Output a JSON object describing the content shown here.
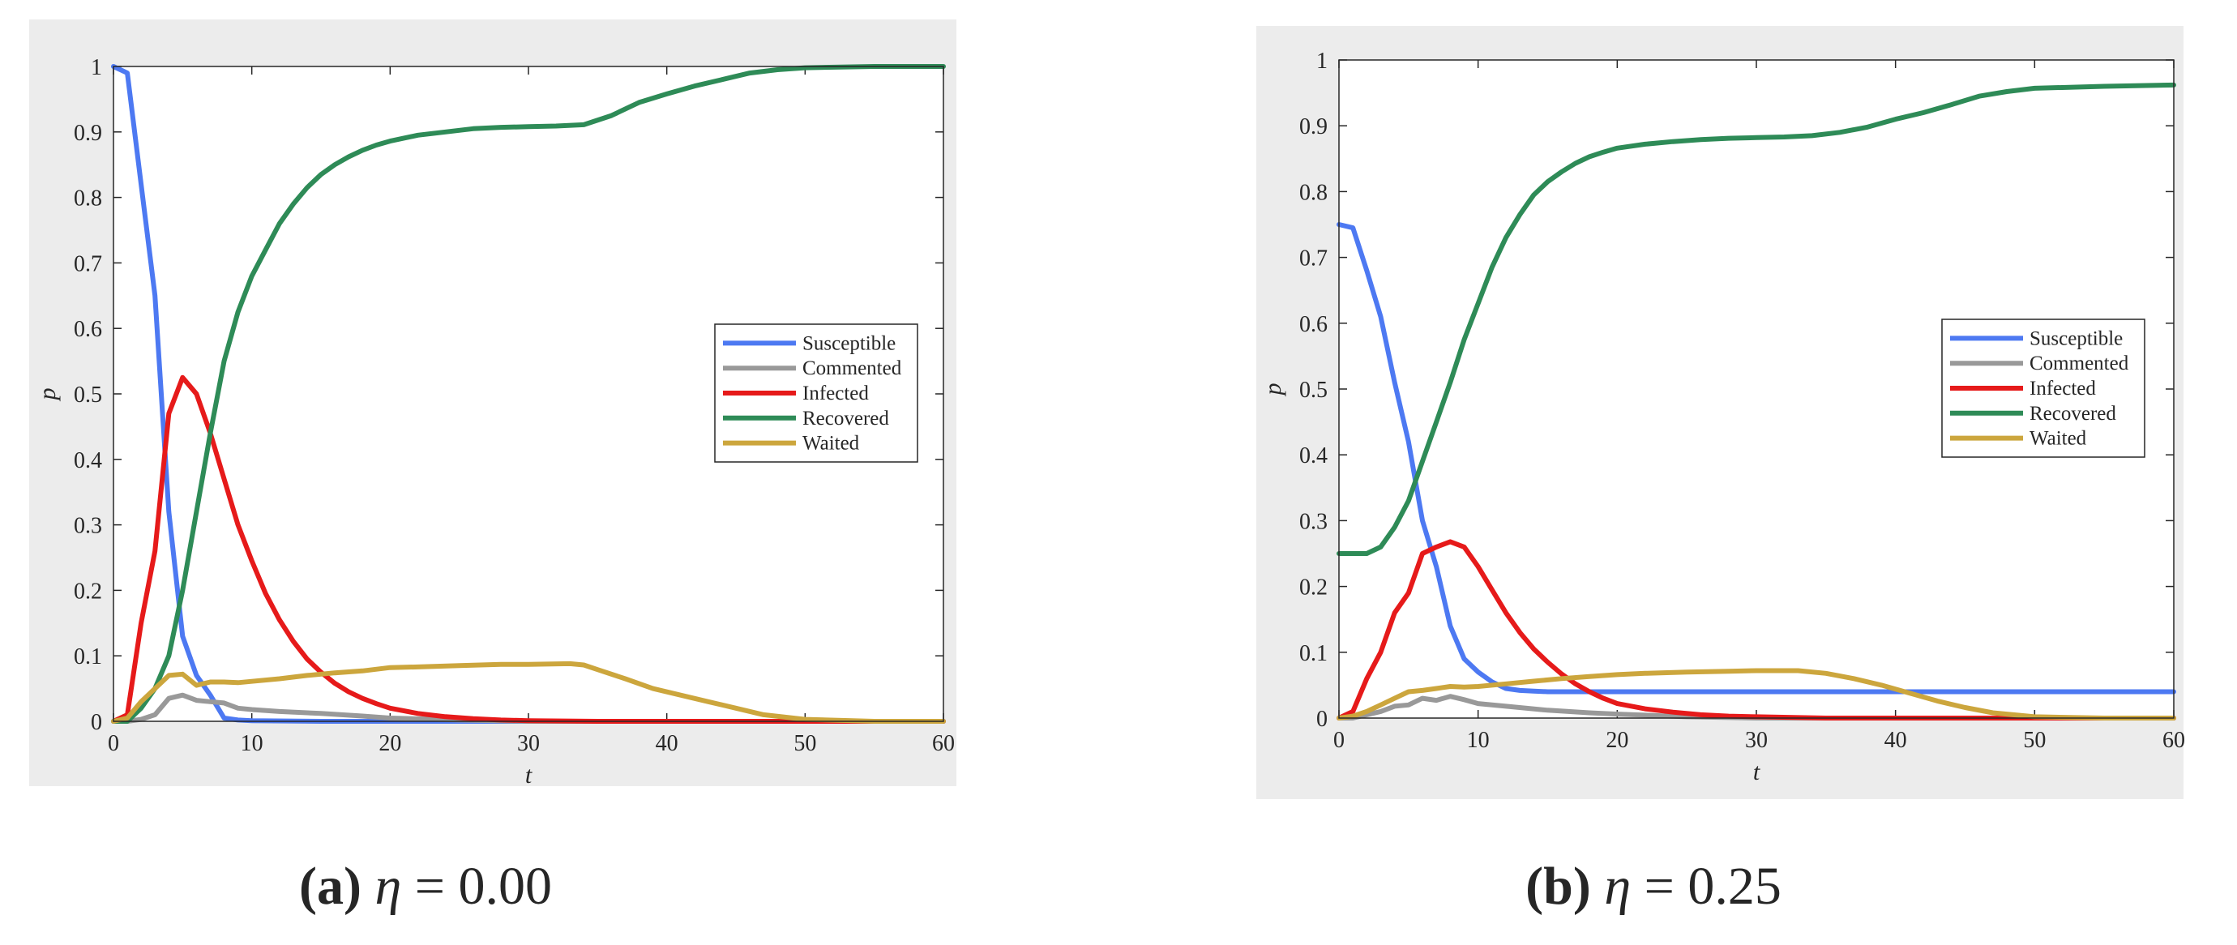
{
  "figure": {
    "panels": [
      {
        "caption_tag": "(a)",
        "caption_symbol": "η",
        "caption_rest": " = 0.00"
      },
      {
        "caption_tag": "(b)",
        "caption_symbol": "η",
        "caption_rest": " = 0.25"
      }
    ]
  },
  "colors": {
    "Susceptible": "#4d79f2",
    "Commented": "#999999",
    "Infected": "#e61a1a",
    "Recovered": "#2e8b57",
    "Waited": "#cca63d",
    "frame_bg": "#ececec"
  },
  "chart_data": [
    {
      "type": "line",
      "title": "",
      "xlabel": "t",
      "ylabel": "p",
      "xlim": [
        0,
        60
      ],
      "ylim": [
        0,
        1
      ],
      "xticks": [
        0,
        10,
        20,
        30,
        40,
        50,
        60
      ],
      "xtick_labels": [
        "0",
        "10",
        "20",
        "30",
        "40",
        "50",
        "60"
      ],
      "yticks": [
        0,
        0.1,
        0.2,
        0.3,
        0.4,
        0.5,
        0.6,
        0.7,
        0.8,
        0.9,
        1
      ],
      "ytick_labels": [
        "0",
        "0.1",
        "0.2",
        "0.3",
        "0.4",
        "0.5",
        "0.6",
        "0.7",
        "0.8",
        "0.9",
        "1"
      ],
      "grid": false,
      "legend_position": "right",
      "series": [
        {
          "name": "Susceptible",
          "x": [
            0,
            1,
            2,
            3,
            4,
            5,
            6,
            7,
            8,
            9,
            10,
            15,
            20,
            30,
            40,
            50,
            60
          ],
          "y": [
            1,
            0.99,
            0.82,
            0.65,
            0.32,
            0.13,
            0.07,
            0.04,
            0.005,
            0.002,
            0.001,
            0,
            0,
            0,
            0,
            0,
            0
          ]
        },
        {
          "name": "Commented",
          "x": [
            0,
            1,
            2,
            3,
            4,
            5,
            6,
            7,
            8,
            9,
            10,
            12,
            15,
            18,
            20,
            25,
            30,
            40,
            50,
            60
          ],
          "y": [
            0,
            0,
            0.003,
            0.01,
            0.035,
            0.04,
            0.032,
            0.03,
            0.028,
            0.02,
            0.018,
            0.015,
            0.012,
            0.008,
            0.005,
            0.002,
            0,
            0,
            0,
            0
          ]
        },
        {
          "name": "Infected",
          "x": [
            0,
            1,
            2,
            3,
            4,
            5,
            6,
            7,
            8,
            9,
            10,
            11,
            12,
            13,
            14,
            15,
            16,
            17,
            18,
            19,
            20,
            22,
            24,
            26,
            28,
            30,
            35,
            40,
            50,
            60
          ],
          "y": [
            0,
            0.01,
            0.15,
            0.26,
            0.47,
            0.525,
            0.5,
            0.44,
            0.37,
            0.3,
            0.245,
            0.195,
            0.155,
            0.122,
            0.095,
            0.075,
            0.058,
            0.045,
            0.035,
            0.027,
            0.02,
            0.012,
            0.007,
            0.004,
            0.002,
            0.001,
            0,
            0,
            0,
            0
          ]
        },
        {
          "name": "Recovered",
          "x": [
            0,
            1,
            2,
            3,
            4,
            5,
            6,
            7,
            8,
            9,
            10,
            11,
            12,
            13,
            14,
            15,
            16,
            17,
            18,
            19,
            20,
            22,
            24,
            26,
            28,
            30,
            32,
            34,
            36,
            38,
            40,
            42,
            44,
            46,
            48,
            50,
            55,
            60
          ],
          "y": [
            0,
            0,
            0.02,
            0.05,
            0.1,
            0.2,
            0.32,
            0.44,
            0.55,
            0.625,
            0.68,
            0.72,
            0.76,
            0.79,
            0.815,
            0.835,
            0.85,
            0.862,
            0.872,
            0.88,
            0.886,
            0.895,
            0.9,
            0.905,
            0.907,
            0.908,
            0.909,
            0.911,
            0.925,
            0.945,
            0.958,
            0.97,
            0.98,
            0.99,
            0.995,
            0.998,
            1,
            1
          ]
        },
        {
          "name": "Waited",
          "x": [
            0,
            1,
            2,
            3,
            4,
            5,
            6,
            7,
            8,
            9,
            10,
            12,
            14,
            16,
            18,
            20,
            22,
            25,
            28,
            30,
            33,
            34,
            35,
            37,
            39,
            41,
            43,
            45,
            47,
            50,
            55,
            60
          ],
          "y": [
            0,
            0.005,
            0.03,
            0.05,
            0.07,
            0.072,
            0.055,
            0.06,
            0.06,
            0.059,
            0.061,
            0.065,
            0.07,
            0.074,
            0.077,
            0.082,
            0.083,
            0.085,
            0.087,
            0.087,
            0.088,
            0.086,
            0.079,
            0.065,
            0.05,
            0.04,
            0.03,
            0.02,
            0.01,
            0.003,
            0,
            0
          ]
        }
      ]
    },
    {
      "type": "line",
      "title": "",
      "xlabel": "t",
      "ylabel": "p",
      "xlim": [
        0,
        60
      ],
      "ylim": [
        0,
        1
      ],
      "xticks": [
        0,
        10,
        20,
        30,
        40,
        50,
        60
      ],
      "xtick_labels": [
        "0",
        "10",
        "20",
        "30",
        "40",
        "50",
        "60"
      ],
      "yticks": [
        0,
        0.1,
        0.2,
        0.3,
        0.4,
        0.5,
        0.6,
        0.7,
        0.8,
        0.9,
        1
      ],
      "ytick_labels": [
        "0",
        "0.1",
        "0.2",
        "0.3",
        "0.4",
        "0.5",
        "0.6",
        "0.7",
        "0.8",
        "0.9",
        "1"
      ],
      "grid": false,
      "legend_position": "right",
      "series": [
        {
          "name": "Susceptible",
          "x": [
            0,
            1,
            2,
            3,
            4,
            5,
            6,
            7,
            8,
            9,
            10,
            11,
            12,
            13,
            14,
            15,
            20,
            30,
            40,
            50,
            60
          ],
          "y": [
            0.75,
            0.745,
            0.68,
            0.61,
            0.51,
            0.42,
            0.3,
            0.23,
            0.14,
            0.09,
            0.07,
            0.055,
            0.045,
            0.042,
            0.041,
            0.04,
            0.04,
            0.04,
            0.04,
            0.04,
            0.04
          ]
        },
        {
          "name": "Commented",
          "x": [
            0,
            1,
            2,
            3,
            4,
            5,
            6,
            7,
            8,
            9,
            10,
            12,
            15,
            18,
            20,
            25,
            30,
            40,
            50,
            60
          ],
          "y": [
            0,
            0,
            0.005,
            0.01,
            0.018,
            0.02,
            0.03,
            0.027,
            0.033,
            0.028,
            0.022,
            0.018,
            0.012,
            0.008,
            0.006,
            0.002,
            0,
            0,
            0,
            0
          ]
        },
        {
          "name": "Infected",
          "x": [
            0,
            1,
            2,
            3,
            4,
            5,
            6,
            7,
            8,
            9,
            10,
            11,
            12,
            13,
            14,
            15,
            16,
            17,
            18,
            19,
            20,
            22,
            24,
            26,
            28,
            30,
            35,
            40,
            50,
            60
          ],
          "y": [
            0,
            0.01,
            0.06,
            0.1,
            0.16,
            0.19,
            0.25,
            0.26,
            0.268,
            0.26,
            0.23,
            0.195,
            0.16,
            0.13,
            0.105,
            0.085,
            0.067,
            0.052,
            0.04,
            0.03,
            0.022,
            0.014,
            0.009,
            0.005,
            0.003,
            0.002,
            0,
            0,
            0,
            0
          ]
        },
        {
          "name": "Recovered",
          "x": [
            0,
            1,
            2,
            3,
            4,
            5,
            6,
            7,
            8,
            9,
            10,
            11,
            12,
            13,
            14,
            15,
            16,
            17,
            18,
            19,
            20,
            22,
            24,
            26,
            28,
            30,
            32,
            34,
            36,
            38,
            40,
            42,
            44,
            46,
            48,
            50,
            55,
            60
          ],
          "y": [
            0.25,
            0.25,
            0.25,
            0.26,
            0.29,
            0.33,
            0.39,
            0.45,
            0.51,
            0.575,
            0.63,
            0.685,
            0.73,
            0.765,
            0.795,
            0.815,
            0.83,
            0.843,
            0.853,
            0.86,
            0.866,
            0.872,
            0.876,
            0.879,
            0.881,
            0.882,
            0.883,
            0.885,
            0.89,
            0.898,
            0.91,
            0.92,
            0.932,
            0.945,
            0.952,
            0.957,
            0.96,
            0.962
          ]
        },
        {
          "name": "Waited",
          "x": [
            0,
            1,
            2,
            3,
            4,
            5,
            6,
            7,
            8,
            9,
            10,
            12,
            14,
            16,
            18,
            20,
            22,
            25,
            28,
            30,
            33,
            35,
            37,
            39,
            41,
            43,
            45,
            47,
            50,
            55,
            60
          ],
          "y": [
            0,
            0.003,
            0.01,
            0.02,
            0.03,
            0.04,
            0.042,
            0.045,
            0.048,
            0.047,
            0.048,
            0.052,
            0.056,
            0.06,
            0.063,
            0.066,
            0.068,
            0.07,
            0.071,
            0.072,
            0.072,
            0.068,
            0.06,
            0.05,
            0.038,
            0.026,
            0.016,
            0.008,
            0.002,
            0,
            0
          ]
        }
      ]
    }
  ]
}
